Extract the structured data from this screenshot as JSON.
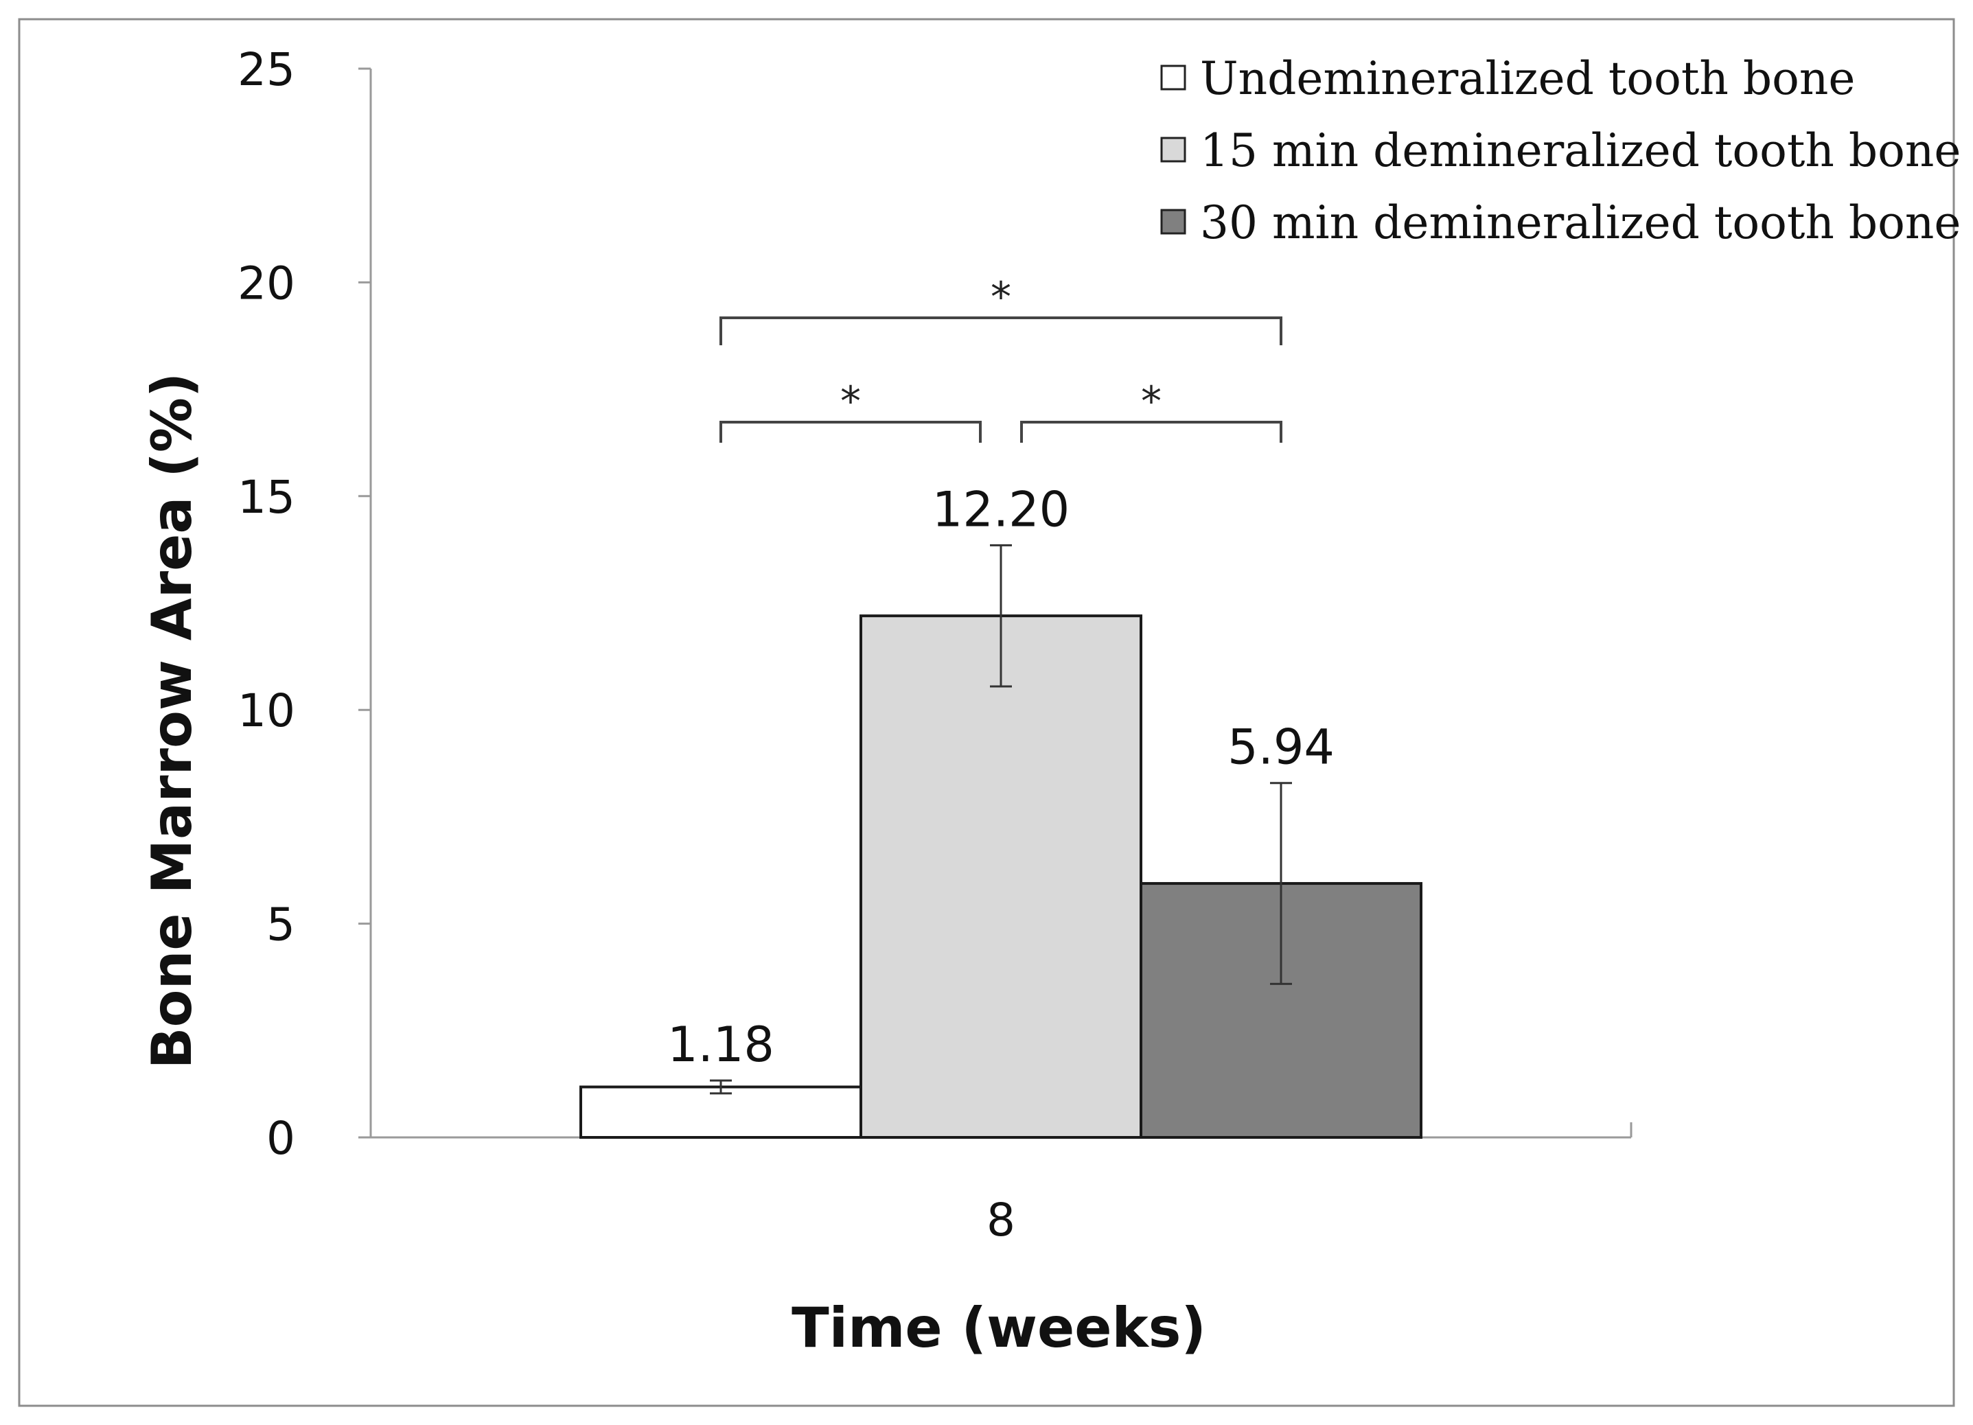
{
  "chart_data": {
    "type": "bar",
    "title": "",
    "xlabel": "Time (weeks)",
    "ylabel": "Bone Marrow Area (%)",
    "ylim": [
      0,
      25
    ],
    "yticks": [
      "0",
      "5",
      "10",
      "15",
      "20",
      "25"
    ],
    "categories": [
      "8"
    ],
    "grid": false,
    "legend_position": "top-right",
    "series": [
      {
        "name": "Undemineralized tooth bone",
        "values": [
          1.18
        ],
        "label": "1.18",
        "error": [
          0.15
        ],
        "color": "#ffffff"
      },
      {
        "name": "15 min demineralized tooth bone",
        "values": [
          12.2
        ],
        "label": "12.20",
        "error": [
          1.65
        ],
        "color": "#d9d9d9"
      },
      {
        "name": "30 min demineralized tooth bone",
        "values": [
          5.94
        ],
        "label": "5.94",
        "error": [
          2.35
        ],
        "color": "#808080"
      }
    ],
    "significance": [
      {
        "from": 0,
        "to": 2,
        "label": "*"
      },
      {
        "from": 0,
        "to": 1,
        "label": "*"
      },
      {
        "from": 1,
        "to": 2,
        "label": "*"
      }
    ]
  }
}
